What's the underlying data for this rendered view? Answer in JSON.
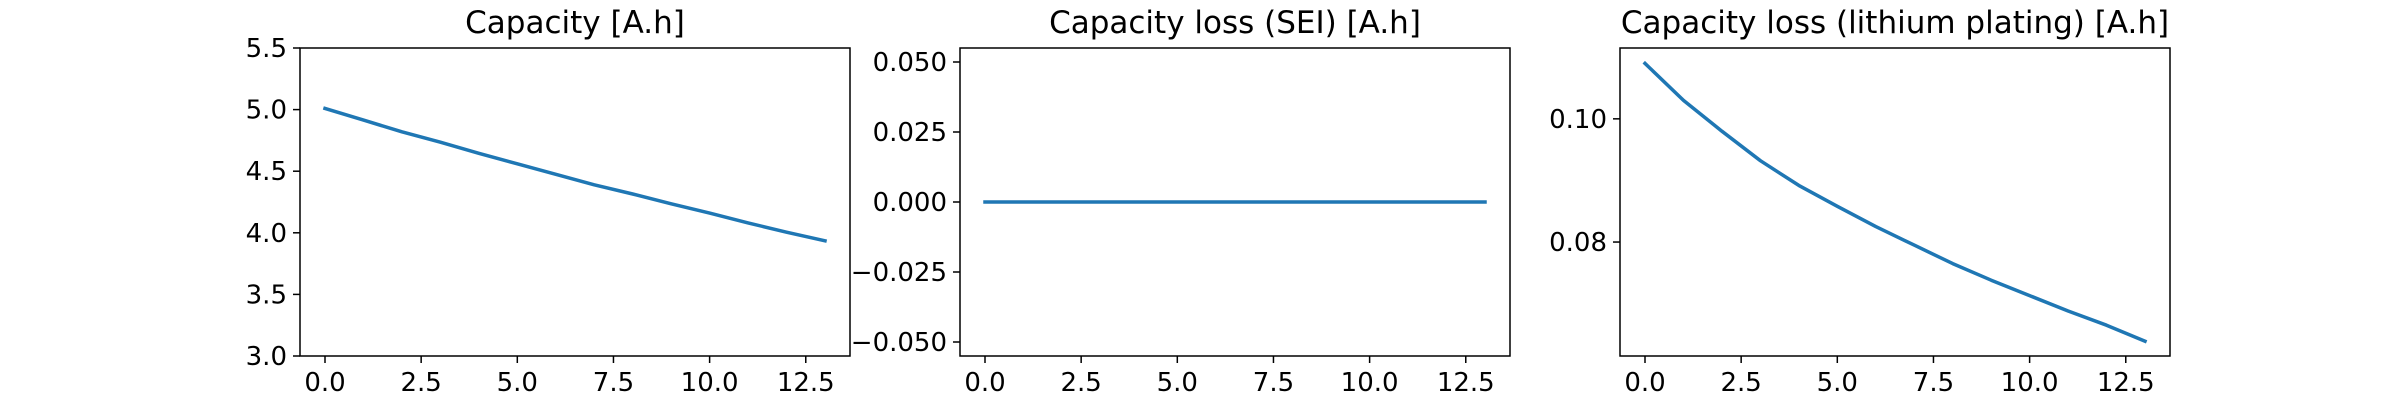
{
  "chart_data": [
    {
      "type": "line",
      "title": "Capacity [A.h]",
      "xlabel": "",
      "ylabel": "",
      "xlim": [
        -0.65,
        13.65
      ],
      "ylim": [
        3.0,
        5.5
      ],
      "xticks": [
        0.0,
        2.5,
        5.0,
        7.5,
        10.0,
        12.5
      ],
      "xtick_labels": [
        "0.0",
        "2.5",
        "5.0",
        "7.5",
        "10.0",
        "12.5"
      ],
      "yticks": [
        3.0,
        3.5,
        4.0,
        4.5,
        5.0,
        5.5
      ],
      "ytick_labels": [
        "3.0",
        "3.5",
        "4.0",
        "4.5",
        "5.0",
        "5.5"
      ],
      "grid": false,
      "color": "#1f77b4",
      "series": [
        {
          "x": [
            0,
            1,
            2,
            3,
            4,
            5,
            6,
            7,
            8,
            9,
            10,
            11,
            12,
            13
          ],
          "y": [
            5.01,
            4.915,
            4.82,
            4.735,
            4.645,
            4.56,
            4.475,
            4.39,
            4.315,
            4.235,
            4.16,
            4.08,
            4.005,
            3.935
          ]
        }
      ]
    },
    {
      "type": "line",
      "title": "Capacity loss (SEI) [A.h]",
      "xlabel": "",
      "ylabel": "",
      "xlim": [
        -0.65,
        13.65
      ],
      "ylim": [
        -0.055,
        0.055
      ],
      "xticks": [
        0.0,
        2.5,
        5.0,
        7.5,
        10.0,
        12.5
      ],
      "xtick_labels": [
        "0.0",
        "2.5",
        "5.0",
        "7.5",
        "10.0",
        "12.5"
      ],
      "yticks": [
        -0.05,
        -0.025,
        0.0,
        0.025,
        0.05
      ],
      "ytick_labels": [
        "−0.050",
        "−0.025",
        "0.000",
        "0.025",
        "0.050"
      ],
      "grid": false,
      "color": "#1f77b4",
      "series": [
        {
          "x": [
            0,
            1,
            2,
            3,
            4,
            5,
            6,
            7,
            8,
            9,
            10,
            11,
            12,
            13
          ],
          "y": [
            0,
            0,
            0,
            0,
            0,
            0,
            0,
            0,
            0,
            0,
            0,
            0,
            0,
            0
          ]
        }
      ]
    },
    {
      "type": "line",
      "title": "Capacity loss (lithium plating) [A.h]",
      "xlabel": "",
      "ylabel": "",
      "xlim": [
        -0.65,
        13.65
      ],
      "ylim": [
        0.0615,
        0.1115
      ],
      "xticks": [
        0.0,
        2.5,
        5.0,
        7.5,
        10.0,
        12.5
      ],
      "xtick_labels": [
        "0.0",
        "2.5",
        "5.0",
        "7.5",
        "10.0",
        "12.5"
      ],
      "yticks": [
        0.08,
        0.1
      ],
      "ytick_labels": [
        "0.08",
        "0.10"
      ],
      "grid": false,
      "color": "#1f77b4",
      "series": [
        {
          "x": [
            0,
            1,
            2,
            3,
            4,
            5,
            6,
            7,
            8,
            9,
            10,
            11,
            12,
            13
          ],
          "y": [
            0.109,
            0.103,
            0.098,
            0.0932,
            0.0892,
            0.0858,
            0.0825,
            0.0795,
            0.0765,
            0.0738,
            0.0713,
            0.0688,
            0.0665,
            0.0639
          ]
        }
      ]
    }
  ]
}
